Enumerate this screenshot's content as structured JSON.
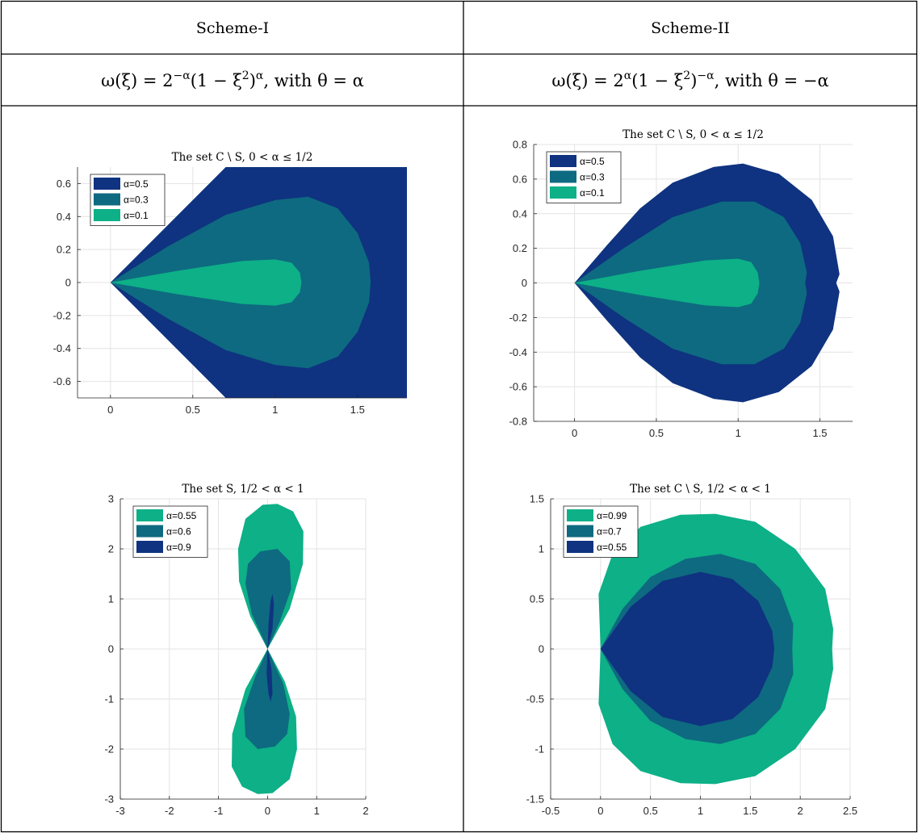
{
  "table": {
    "headers": [
      "Scheme-I",
      "Scheme-II"
    ],
    "formulas": [
      [
        "ω(ξ) = 2",
        "−α",
        "(1 − ξ",
        "2",
        ")",
        "α",
        ", with θ = α"
      ],
      [
        "ω(ξ) = 2",
        "α",
        "(1 − ξ",
        "2",
        ")",
        "−α",
        ", with θ = −α"
      ]
    ]
  },
  "colors": {
    "dark_blue": "#0f3380",
    "teal": "#0e6a80",
    "green": "#0db087",
    "grid": "#e3e3e3",
    "axis": "#262626",
    "border": "#000000"
  },
  "chart_data": [
    {
      "type": "area",
      "title": "The set C \\ S, 0 < α ≤ 1/2",
      "xlim": [
        -0.2,
        1.8
      ],
      "ylim": [
        -0.7,
        0.7
      ],
      "xticks": [
        0,
        0.5,
        1,
        1.5
      ],
      "xtick_labels": [
        "0",
        "0.5",
        "1",
        "1.5"
      ],
      "yticks": [
        -0.6,
        -0.4,
        -0.2,
        0,
        0.2,
        0.4,
        0.6
      ],
      "ytick_labels": [
        "-0.6",
        "-0.4",
        "-0.2",
        "0",
        "0.2",
        "0.4",
        "0.6"
      ],
      "grid": true,
      "legend_position": "top-left",
      "series": [
        {
          "name": "α=0.5",
          "color": "#0f3380",
          "points": [
            [
              0,
              0
            ],
            [
              0.7,
              0.7
            ],
            [
              1.8,
              0.7
            ],
            [
              1.8,
              -0.7
            ],
            [
              0.7,
              -0.7
            ]
          ]
        },
        {
          "name": "α=0.3",
          "color": "#0e6a80",
          "points": [
            [
              0,
              0
            ],
            [
              0.35,
              0.22
            ],
            [
              0.7,
              0.41
            ],
            [
              1.0,
              0.5
            ],
            [
              1.2,
              0.52
            ],
            [
              1.38,
              0.45
            ],
            [
              1.5,
              0.3
            ],
            [
              1.57,
              0.12
            ],
            [
              1.58,
              0
            ],
            [
              1.57,
              -0.12
            ],
            [
              1.5,
              -0.3
            ],
            [
              1.38,
              -0.45
            ],
            [
              1.2,
              -0.52
            ],
            [
              1.0,
              -0.5
            ],
            [
              0.7,
              -0.41
            ],
            [
              0.35,
              -0.22
            ]
          ]
        },
        {
          "name": "α=0.1",
          "color": "#0db087",
          "points": [
            [
              0,
              0
            ],
            [
              0.4,
              0.07
            ],
            [
              0.8,
              0.13
            ],
            [
              1.0,
              0.14
            ],
            [
              1.1,
              0.12
            ],
            [
              1.15,
              0.06
            ],
            [
              1.16,
              0
            ],
            [
              1.15,
              -0.06
            ],
            [
              1.1,
              -0.12
            ],
            [
              1.0,
              -0.14
            ],
            [
              0.8,
              -0.13
            ],
            [
              0.4,
              -0.07
            ]
          ]
        }
      ]
    },
    {
      "type": "area",
      "title": "The set C \\ S, 0 < α ≤ 1/2",
      "xlim": [
        -0.25,
        1.7
      ],
      "ylim": [
        -0.8,
        0.8
      ],
      "xticks": [
        0,
        0.5,
        1,
        1.5
      ],
      "xtick_labels": [
        "0",
        "0.5",
        "1",
        "1.5"
      ],
      "yticks": [
        -0.8,
        -0.6,
        -0.4,
        -0.2,
        0,
        0.2,
        0.4,
        0.6,
        0.8
      ],
      "ytick_labels": [
        "-0.8",
        "-0.6",
        "-0.4",
        "-0.2",
        "0",
        "0.2",
        "0.4",
        "0.6",
        "0.8"
      ],
      "grid": true,
      "legend_position": "top-left",
      "series": [
        {
          "name": "α=0.5",
          "color": "#0f3380",
          "points": [
            [
              0,
              0
            ],
            [
              0.2,
              0.22
            ],
            [
              0.4,
              0.43
            ],
            [
              0.6,
              0.58
            ],
            [
              0.85,
              0.67
            ],
            [
              1.03,
              0.69
            ],
            [
              1.25,
              0.63
            ],
            [
              1.45,
              0.48
            ],
            [
              1.58,
              0.27
            ],
            [
              1.62,
              0.05
            ],
            [
              1.6,
              0
            ],
            [
              1.62,
              -0.05
            ],
            [
              1.58,
              -0.27
            ],
            [
              1.45,
              -0.48
            ],
            [
              1.25,
              -0.63
            ],
            [
              1.03,
              -0.69
            ],
            [
              0.85,
              -0.67
            ],
            [
              0.6,
              -0.58
            ],
            [
              0.4,
              -0.43
            ],
            [
              0.2,
              -0.22
            ]
          ]
        },
        {
          "name": "α=0.3",
          "color": "#0e6a80",
          "points": [
            [
              0,
              0
            ],
            [
              0.3,
              0.2
            ],
            [
              0.6,
              0.38
            ],
            [
              0.9,
              0.47
            ],
            [
              1.1,
              0.47
            ],
            [
              1.28,
              0.38
            ],
            [
              1.38,
              0.23
            ],
            [
              1.42,
              0.06
            ],
            [
              1.41,
              0
            ],
            [
              1.42,
              -0.06
            ],
            [
              1.38,
              -0.23
            ],
            [
              1.28,
              -0.38
            ],
            [
              1.1,
              -0.47
            ],
            [
              0.9,
              -0.47
            ],
            [
              0.6,
              -0.38
            ],
            [
              0.3,
              -0.2
            ]
          ]
        },
        {
          "name": "α=0.1",
          "color": "#0db087",
          "points": [
            [
              0,
              0
            ],
            [
              0.4,
              0.07
            ],
            [
              0.8,
              0.13
            ],
            [
              1.0,
              0.14
            ],
            [
              1.08,
              0.12
            ],
            [
              1.12,
              0.06
            ],
            [
              1.13,
              0
            ],
            [
              1.12,
              -0.06
            ],
            [
              1.08,
              -0.12
            ],
            [
              1.0,
              -0.14
            ],
            [
              0.8,
              -0.13
            ],
            [
              0.4,
              -0.07
            ]
          ]
        }
      ]
    },
    {
      "type": "area",
      "title": "The set S, 1/2 < α < 1",
      "xlim": [
        -3,
        2
      ],
      "ylim": [
        -3,
        3
      ],
      "xticks": [
        -3,
        -2,
        -1,
        0,
        1,
        2
      ],
      "xtick_labels": [
        "-3",
        "-2",
        "-1",
        "0",
        "1",
        "2"
      ],
      "yticks": [
        -3,
        -2,
        -1,
        0,
        1,
        2,
        3
      ],
      "ytick_labels": [
        "-3",
        "-2",
        "-1",
        "0",
        "1",
        "2",
        "3"
      ],
      "grid": true,
      "legend_position": "top-left",
      "series": [
        {
          "name": "α=0.55",
          "color": "#0db087",
          "points": [
            [
              0,
              0
            ],
            [
              -0.35,
              0.65
            ],
            [
              -0.58,
              1.35
            ],
            [
              -0.6,
              2.0
            ],
            [
              -0.45,
              2.6
            ],
            [
              -0.1,
              2.88
            ],
            [
              0.2,
              2.9
            ],
            [
              0.52,
              2.75
            ],
            [
              0.73,
              2.35
            ],
            [
              0.72,
              1.7
            ],
            [
              0.45,
              0.8
            ],
            [
              0,
              0
            ],
            [
              -0.45,
              -0.8
            ],
            [
              -0.72,
              -1.7
            ],
            [
              -0.73,
              -2.35
            ],
            [
              -0.52,
              -2.75
            ],
            [
              -0.2,
              -2.9
            ],
            [
              0.1,
              -2.88
            ],
            [
              0.45,
              -2.6
            ],
            [
              0.6,
              -2.0
            ],
            [
              0.58,
              -1.35
            ],
            [
              0.35,
              -0.65
            ]
          ]
        },
        {
          "name": "α=0.6",
          "color": "#0e6a80",
          "points": [
            [
              0,
              0
            ],
            [
              -0.32,
              0.7
            ],
            [
              -0.45,
              1.3
            ],
            [
              -0.4,
              1.7
            ],
            [
              -0.15,
              1.95
            ],
            [
              0.2,
              2.0
            ],
            [
              0.45,
              1.75
            ],
            [
              0.48,
              1.2
            ],
            [
              0.25,
              0.55
            ],
            [
              0,
              0
            ],
            [
              -0.25,
              -0.55
            ],
            [
              -0.48,
              -1.2
            ],
            [
              -0.45,
              -1.75
            ],
            [
              -0.2,
              -2.0
            ],
            [
              0.15,
              -1.95
            ],
            [
              0.4,
              -1.7
            ],
            [
              0.45,
              -1.3
            ],
            [
              0.32,
              -0.7
            ]
          ]
        },
        {
          "name": "α=0.9",
          "color": "#0f3380",
          "points": [
            [
              0,
              0
            ],
            [
              0.02,
              0.5
            ],
            [
              0.06,
              0.95
            ],
            [
              0.1,
              1.1
            ],
            [
              0.13,
              0.9
            ],
            [
              0.1,
              0.4
            ],
            [
              0,
              0
            ],
            [
              -0.02,
              -0.5
            ],
            [
              0.02,
              -0.9
            ],
            [
              0.06,
              -1.05
            ],
            [
              0.1,
              -0.9
            ],
            [
              0.08,
              -0.4
            ]
          ]
        }
      ]
    },
    {
      "type": "area",
      "title": "The set C \\ S, 1/2 < α < 1",
      "xlim": [
        -0.5,
        2.5
      ],
      "ylim": [
        -1.5,
        1.5
      ],
      "xticks": [
        -0.5,
        0,
        0.5,
        1,
        1.5,
        2,
        2.5
      ],
      "xtick_labels": [
        "-0.5",
        "0",
        "0.5",
        "1",
        "1.5",
        "2",
        "2.5"
      ],
      "yticks": [
        -1.5,
        -1,
        -0.5,
        0,
        0.5,
        1,
        1.5
      ],
      "ytick_labels": [
        "-1.5",
        "-1",
        "-0.5",
        "0",
        "0.5",
        "1",
        "1.5"
      ],
      "grid": true,
      "legend_position": "top-left",
      "series": [
        {
          "name": "α=0.99",
          "color": "#0db087",
          "points": [
            [
              0,
              0
            ],
            [
              -0.02,
              0.55
            ],
            [
              0.12,
              0.95
            ],
            [
              0.4,
              1.22
            ],
            [
              0.8,
              1.34
            ],
            [
              1.15,
              1.35
            ],
            [
              1.55,
              1.27
            ],
            [
              1.95,
              1.0
            ],
            [
              2.25,
              0.6
            ],
            [
              2.33,
              0.2
            ],
            [
              2.32,
              0
            ],
            [
              2.33,
              -0.2
            ],
            [
              2.25,
              -0.6
            ],
            [
              1.95,
              -1.0
            ],
            [
              1.55,
              -1.27
            ],
            [
              1.15,
              -1.35
            ],
            [
              0.8,
              -1.34
            ],
            [
              0.4,
              -1.22
            ],
            [
              0.12,
              -0.95
            ],
            [
              -0.02,
              -0.55
            ]
          ]
        },
        {
          "name": "α=0.7",
          "color": "#0e6a80",
          "points": [
            [
              0,
              0
            ],
            [
              0.22,
              0.4
            ],
            [
              0.5,
              0.72
            ],
            [
              0.85,
              0.9
            ],
            [
              1.2,
              0.95
            ],
            [
              1.55,
              0.85
            ],
            [
              1.8,
              0.6
            ],
            [
              1.93,
              0.25
            ],
            [
              1.92,
              0
            ],
            [
              1.93,
              -0.25
            ],
            [
              1.8,
              -0.6
            ],
            [
              1.55,
              -0.85
            ],
            [
              1.2,
              -0.95
            ],
            [
              0.85,
              -0.9
            ],
            [
              0.5,
              -0.72
            ],
            [
              0.22,
              -0.4
            ]
          ]
        },
        {
          "name": "α=0.55",
          "color": "#0f3380",
          "points": [
            [
              0,
              0
            ],
            [
              0.3,
              0.42
            ],
            [
              0.62,
              0.68
            ],
            [
              1.0,
              0.77
            ],
            [
              1.32,
              0.7
            ],
            [
              1.58,
              0.48
            ],
            [
              1.72,
              0.18
            ],
            [
              1.74,
              0
            ],
            [
              1.72,
              -0.18
            ],
            [
              1.58,
              -0.48
            ],
            [
              1.32,
              -0.7
            ],
            [
              1.0,
              -0.77
            ],
            [
              0.62,
              -0.68
            ],
            [
              0.3,
              -0.42
            ]
          ]
        }
      ]
    }
  ]
}
